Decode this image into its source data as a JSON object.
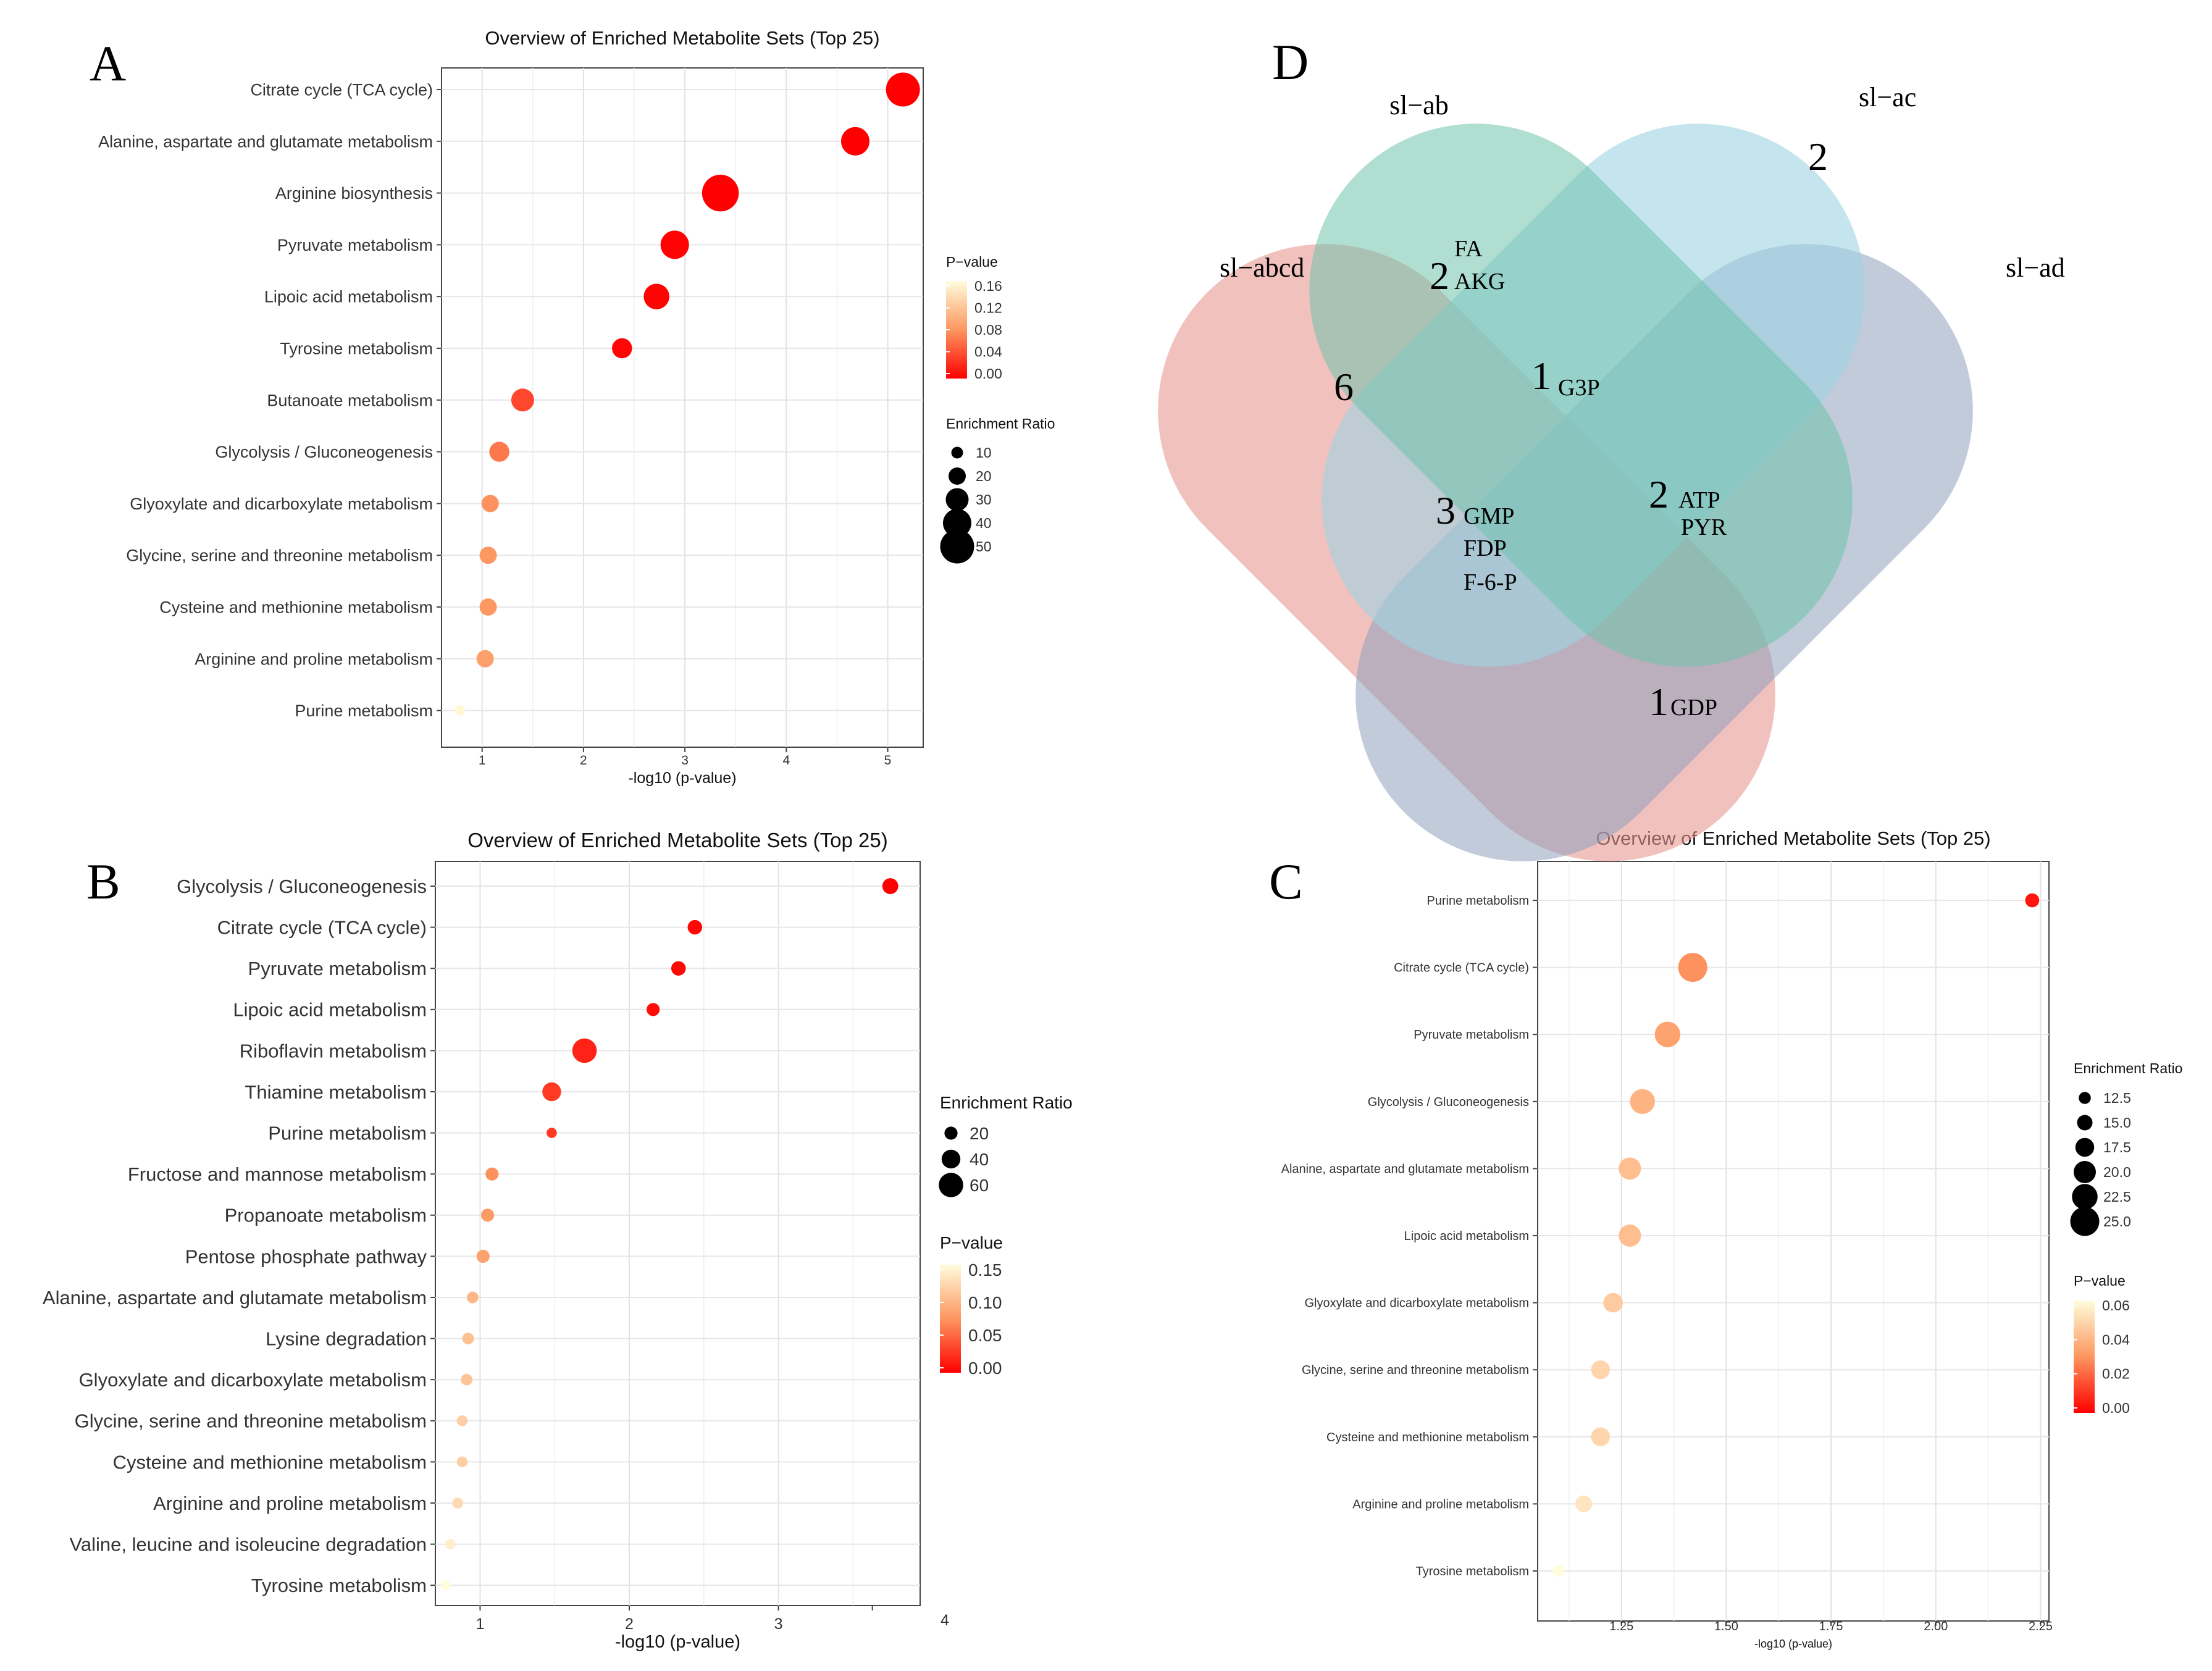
{
  "chart_data": [
    {
      "panel": "A",
      "type": "scatter",
      "title": "Overview of Enriched Metabolite Sets (Top 25)",
      "xlabel": "-log10 (p-value)",
      "xlim": [
        0.6,
        5.35
      ],
      "xticks": [
        1,
        2,
        3,
        4,
        5
      ],
      "categories": [
        "Citrate cycle (TCA cycle)",
        "Alanine, aspartate and glutamate metabolism",
        "Arginine biosynthesis",
        "Pyruvate metabolism",
        "Lipoic acid metabolism",
        "Tyrosine metabolism",
        "Butanoate metabolism",
        "Glycolysis / Gluconeogenesis",
        "Glyoxylate and dicarboxylate metabolism",
        "Glycine, serine and threonine metabolism",
        "Cysteine and methionine metabolism",
        "Arginine and proline metabolism",
        "Purine metabolism"
      ],
      "x": [
        5.15,
        4.68,
        3.35,
        2.9,
        2.72,
        2.38,
        1.4,
        1.17,
        1.08,
        1.06,
        1.06,
        1.03,
        0.78
      ],
      "pvalue": [
        0.0,
        0.0,
        0.0,
        0.001,
        0.002,
        0.004,
        0.04,
        0.068,
        0.083,
        0.087,
        0.087,
        0.093,
        0.166
      ],
      "enrichment_ratio": [
        50,
        40,
        55,
        40,
        35,
        25,
        30,
        25,
        20,
        20,
        20,
        20,
        8
      ],
      "pcolor_legend": {
        "title": "P−value",
        "labels": [
          "0.16",
          "0.12",
          "0.08",
          "0.04",
          "0.00"
        ],
        "range": [
          0,
          0.17
        ]
      },
      "size_legend": {
        "title": "Enrichment Ratio",
        "labels": [
          "10",
          "20",
          "30",
          "40",
          "50"
        ],
        "values": [
          10,
          20,
          30,
          40,
          50
        ]
      }
    },
    {
      "panel": "B",
      "type": "scatter",
      "title": "Overview of Enriched Metabolite Sets (Top 25)",
      "xlabel": "-log10 (p-value)",
      "xlim": [
        0.7,
        3.95
      ],
      "xticks": [
        1,
        2,
        3
      ],
      "extra_tick_label": "4",
      "categories": [
        "Glycolysis / Gluconeogenesis",
        "Citrate cycle (TCA cycle)",
        "Pyruvate metabolism",
        "Lipoic acid metabolism",
        "Riboflavin metabolism",
        "Thiamine metabolism",
        "Purine metabolism",
        "Fructose and mannose metabolism",
        "Propanoate metabolism",
        "Pentose phosphate pathway",
        "Alanine, aspartate and glutamate metabolism",
        "Lysine degradation",
        "Glyoxylate and dicarboxylate metabolism",
        "Glycine, serine and threonine metabolism",
        "Cysteine and methionine metabolism",
        "Arginine and proline metabolism",
        "Valine, leucine and isoleucine degradation",
        "Tyrosine metabolism"
      ],
      "x": [
        3.75,
        2.44,
        2.33,
        2.16,
        1.7,
        1.48,
        1.48,
        1.08,
        1.05,
        1.02,
        0.95,
        0.92,
        0.91,
        0.88,
        0.88,
        0.85,
        0.8,
        0.77
      ],
      "pvalue": [
        0.0,
        0.004,
        0.005,
        0.007,
        0.02,
        0.033,
        0.033,
        0.083,
        0.089,
        0.095,
        0.112,
        0.12,
        0.123,
        0.132,
        0.132,
        0.141,
        0.158,
        0.17
      ],
      "enrichment_ratio": [
        30,
        25,
        25,
        20,
        60,
        40,
        10,
        20,
        20,
        20,
        15,
        15,
        15,
        12,
        12,
        12,
        10,
        8
      ],
      "pcolor_legend": {
        "title": "P−value",
        "labels": [
          "0.15",
          "0.10",
          "0.05",
          "0.00"
        ],
        "range": [
          0,
          0.17
        ]
      },
      "size_legend": {
        "title": "Enrichment Ratio",
        "labels": [
          "20",
          "40",
          "60"
        ],
        "values": [
          20,
          40,
          60
        ]
      }
    },
    {
      "panel": "C",
      "type": "scatter",
      "title": "Overview of Enriched Metabolite Sets (Top 25)",
      "xlabel": "-log10 (p-value)",
      "xlim": [
        1.05,
        2.27
      ],
      "xticks": [
        1.25,
        1.5,
        1.75,
        2.0,
        2.25
      ],
      "xticklabels": [
        "1.25",
        "1.50",
        "1.75",
        "2.00",
        "2.25"
      ],
      "categories": [
        "Purine metabolism",
        "Citrate cycle (TCA cycle)",
        "Pyruvate metabolism",
        "Glycolysis / Gluconeogenesis",
        "Alanine, aspartate and glutamate metabolism",
        "Lipoic acid metabolism",
        "Glyoxylate and dicarboxylate metabolism",
        "Glycine, serine and threonine metabolism",
        "Cysteine and methionine metabolism",
        "Arginine and proline metabolism",
        "Tyrosine metabolism"
      ],
      "x": [
        2.23,
        1.42,
        1.36,
        1.3,
        1.27,
        1.27,
        1.23,
        1.2,
        1.2,
        1.16,
        1.1
      ],
      "pvalue": [
        0.006,
        0.038,
        0.044,
        0.05,
        0.054,
        0.054,
        0.059,
        0.063,
        0.063,
        0.069,
        0.078
      ],
      "enrichment_ratio": [
        14,
        25,
        22.5,
        22,
        20,
        20,
        18,
        17.5,
        17.5,
        16,
        12
      ],
      "pcolor_legend": {
        "title": "P−value",
        "labels": [
          "0.06",
          "0.04",
          "0.02",
          "0.00"
        ],
        "range": [
          0,
          0.078
        ]
      },
      "size_legend": {
        "title": "Enrichment Ratio",
        "labels": [
          "12.5",
          "15.0",
          "17.5",
          "20.0",
          "22.5",
          "25.0"
        ],
        "values": [
          12.5,
          15,
          17.5,
          20,
          22.5,
          25
        ]
      }
    }
  ],
  "panels": {
    "A": "A",
    "B": "B",
    "C": "C",
    "D": "D"
  },
  "venn": {
    "panel": "D",
    "sets": [
      "sl−ab",
      "sl−ac",
      "sl−abcd",
      "sl−ad"
    ],
    "regions": [
      {
        "count": "2",
        "metabolites": []
      },
      {
        "count": "6",
        "metabolites": []
      },
      {
        "count": "2",
        "metabolites": [
          "FA",
          "AKG"
        ]
      },
      {
        "count": "1",
        "metabolites": [
          "G3P"
        ]
      },
      {
        "count": "3",
        "metabolites": [
          "GMP",
          "FDP",
          "F-6-P"
        ]
      },
      {
        "count": "2",
        "metabolites": [
          "ATP",
          "PYR"
        ]
      },
      {
        "count": "1",
        "metabolites": [
          "GDP"
        ]
      }
    ],
    "colors": {
      "sl-ab": "#9fd4e3",
      "sl-ac": "#83cbb9",
      "sl-abcd": "#e89792",
      "sl-ad": "#9aa9c0",
      "bottom": "#a87b8a"
    }
  }
}
